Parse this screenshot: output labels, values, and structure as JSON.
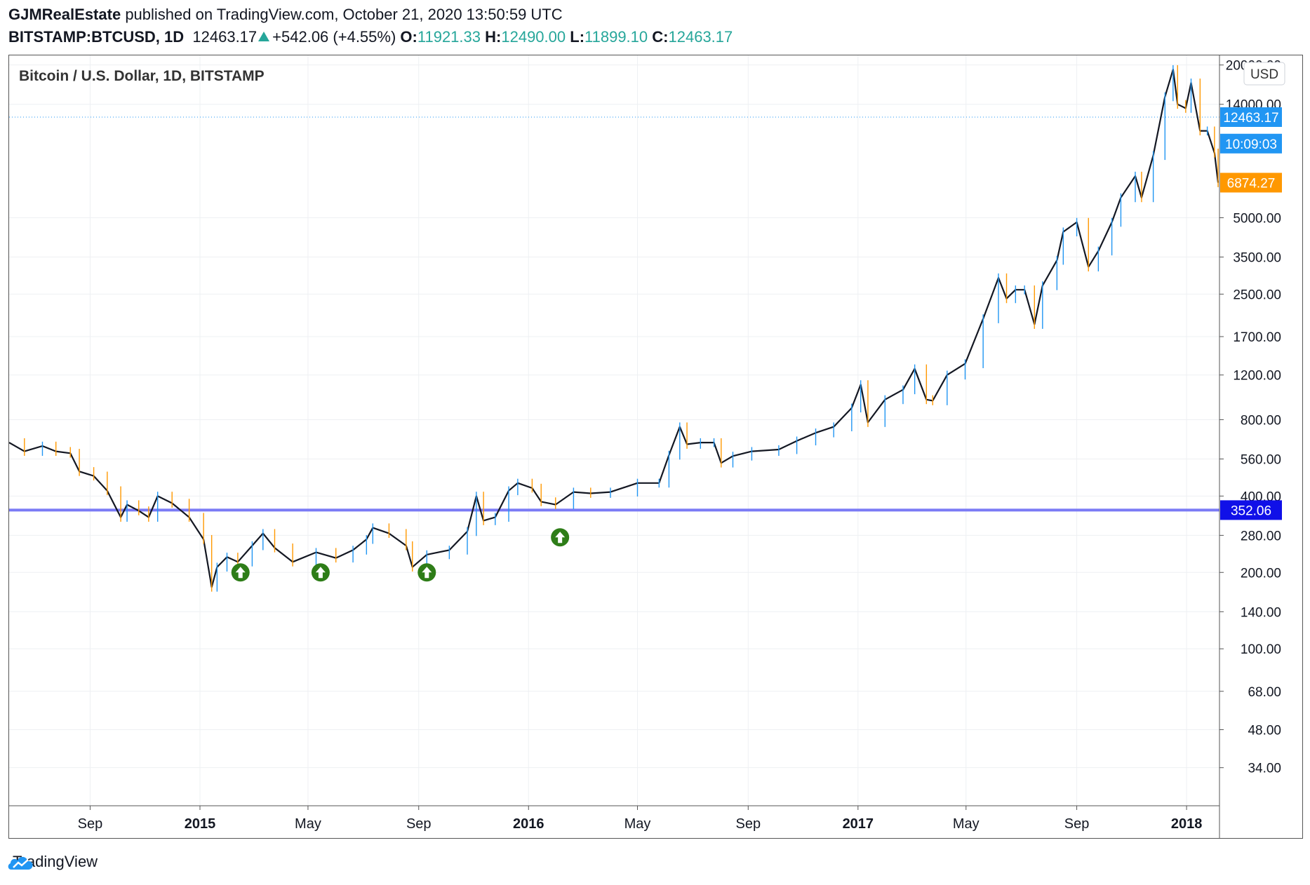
{
  "header": {
    "author": "GJMRealEstate",
    "published_text": "published on TradingView.com, October 21, 2020 13:50:59 UTC",
    "symbol": "BITSTAMP:BTCUSD, 1D",
    "last": "12463.17",
    "change": "+542.06 (+4.55%)",
    "o_label": "O:",
    "o_value": "11921.33",
    "h_label": "H:",
    "h_value": "12490.00",
    "l_label": "L:",
    "l_value": "11899.10",
    "c_label": "C:",
    "c_value": "12463.17",
    "change_color": "#26a69a"
  },
  "footer": {
    "brand": "TradingView",
    "logo_icon": "tradingview-cloud-icon"
  },
  "chart_data": {
    "type": "line",
    "title": "Bitcoin / U.S. Dollar, 1D, BITSTAMP",
    "currency_label": "USD",
    "y_scale": "log",
    "xlim": [
      "2014-06-03",
      "2018-02-05"
    ],
    "ylim": [
      25,
      21000
    ],
    "y_ticks": [
      "20000.00",
      "14000.00",
      "5000.00",
      "3500.00",
      "2500.00",
      "1700.00",
      "1200.00",
      "800.00",
      "560.00",
      "400.00",
      "280.00",
      "200.00",
      "140.00",
      "100.00",
      "68.00",
      "48.00",
      "34.00"
    ],
    "x_ticks": [
      {
        "label": "Sep",
        "date": "2014-09-01"
      },
      {
        "label": "2015",
        "date": "2015-01-01"
      },
      {
        "label": "May",
        "date": "2015-05-01"
      },
      {
        "label": "Sep",
        "date": "2015-09-01"
      },
      {
        "label": "2016",
        "date": "2016-01-01"
      },
      {
        "label": "May",
        "date": "2016-05-01"
      },
      {
        "label": "Sep",
        "date": "2016-09-01"
      },
      {
        "label": "2017",
        "date": "2017-01-01"
      },
      {
        "label": "May",
        "date": "2017-05-01"
      },
      {
        "label": "Sep",
        "date": "2017-09-01"
      },
      {
        "label": "2018",
        "date": "2018-01-01"
      }
    ],
    "series": [
      {
        "values": [
          [
            "2014-06-03",
            650
          ],
          [
            "2014-06-20",
            600
          ],
          [
            "2014-07-10",
            630
          ],
          [
            "2014-07-25",
            600
          ],
          [
            "2014-08-10",
            590
          ],
          [
            "2014-08-20",
            500
          ],
          [
            "2014-09-05",
            480
          ],
          [
            "2014-09-20",
            420
          ],
          [
            "2014-10-05",
            330
          ],
          [
            "2014-10-12",
            370
          ],
          [
            "2014-10-25",
            350
          ],
          [
            "2014-11-05",
            330
          ],
          [
            "2014-11-15",
            400
          ],
          [
            "2014-12-01",
            375
          ],
          [
            "2014-12-20",
            330
          ],
          [
            "2015-01-05",
            270
          ],
          [
            "2015-01-14",
            175
          ],
          [
            "2015-01-20",
            210
          ],
          [
            "2015-01-31",
            230
          ],
          [
            "2015-02-12",
            220
          ],
          [
            "2015-02-28",
            255
          ],
          [
            "2015-03-12",
            285
          ],
          [
            "2015-03-25",
            250
          ],
          [
            "2015-04-14",
            220
          ],
          [
            "2015-05-10",
            240
          ],
          [
            "2015-06-01",
            228
          ],
          [
            "2015-06-20",
            245
          ],
          [
            "2015-07-05",
            270
          ],
          [
            "2015-07-12",
            300
          ],
          [
            "2015-07-30",
            285
          ],
          [
            "2015-08-18",
            255
          ],
          [
            "2015-08-25",
            210
          ],
          [
            "2015-09-10",
            235
          ],
          [
            "2015-10-05",
            245
          ],
          [
            "2015-10-25",
            290
          ],
          [
            "2015-11-04",
            400
          ],
          [
            "2015-11-12",
            320
          ],
          [
            "2015-11-25",
            330
          ],
          [
            "2015-12-10",
            420
          ],
          [
            "2015-12-20",
            450
          ],
          [
            "2016-01-05",
            430
          ],
          [
            "2016-01-15",
            380
          ],
          [
            "2016-01-31",
            370
          ],
          [
            "2016-02-20",
            415
          ],
          [
            "2016-03-10",
            410
          ],
          [
            "2016-04-01",
            415
          ],
          [
            "2016-05-01",
            450
          ],
          [
            "2016-05-25",
            450
          ],
          [
            "2016-06-05",
            580
          ],
          [
            "2016-06-17",
            750
          ],
          [
            "2016-06-25",
            640
          ],
          [
            "2016-07-10",
            650
          ],
          [
            "2016-07-25",
            650
          ],
          [
            "2016-08-02",
            540
          ],
          [
            "2016-08-15",
            575
          ],
          [
            "2016-09-05",
            600
          ],
          [
            "2016-10-05",
            610
          ],
          [
            "2016-10-25",
            660
          ],
          [
            "2016-11-15",
            710
          ],
          [
            "2016-12-05",
            750
          ],
          [
            "2016-12-25",
            890
          ],
          [
            "2017-01-04",
            1100
          ],
          [
            "2017-01-12",
            780
          ],
          [
            "2017-01-31",
            960
          ],
          [
            "2017-02-20",
            1050
          ],
          [
            "2017-03-05",
            1270
          ],
          [
            "2017-03-18",
            960
          ],
          [
            "2017-03-25",
            950
          ],
          [
            "2017-04-10",
            1200
          ],
          [
            "2017-04-30",
            1330
          ],
          [
            "2017-05-20",
            2000
          ],
          [
            "2017-06-06",
            2900
          ],
          [
            "2017-06-15",
            2400
          ],
          [
            "2017-06-25",
            2600
          ],
          [
            "2017-07-05",
            2600
          ],
          [
            "2017-07-16",
            1900
          ],
          [
            "2017-07-25",
            2700
          ],
          [
            "2017-08-10",
            3400
          ],
          [
            "2017-08-17",
            4400
          ],
          [
            "2017-09-01",
            4800
          ],
          [
            "2017-09-14",
            3200
          ],
          [
            "2017-09-25",
            3700
          ],
          [
            "2017-10-10",
            4800
          ],
          [
            "2017-10-20",
            6000
          ],
          [
            "2017-11-05",
            7300
          ],
          [
            "2017-11-12",
            6000
          ],
          [
            "2017-11-25",
            8800
          ],
          [
            "2017-12-08",
            15000
          ],
          [
            "2017-12-17",
            19200
          ],
          [
            "2017-12-22",
            14000
          ],
          [
            "2017-12-31",
            13500
          ],
          [
            "2018-01-06",
            17000
          ],
          [
            "2018-01-16",
            11000
          ],
          [
            "2018-01-24",
            11000
          ],
          [
            "2018-02-01",
            9000
          ],
          [
            "2018-02-05",
            6874.27
          ]
        ]
      }
    ],
    "horizontal_line": {
      "value": 352.06,
      "label": "352.06",
      "color": "#7b7bf5"
    },
    "last_price_line": {
      "value": 12463.17
    },
    "price_tags": [
      {
        "label": "12463.17",
        "value": 12463.17,
        "color": "#2196f3"
      },
      {
        "label": "10:09:03",
        "value": 9800,
        "color": "#2196f3"
      },
      {
        "label": "6874.27",
        "value": 6874.27,
        "color": "#ff9800"
      },
      {
        "label": "352.06",
        "value": 352.06,
        "color": "#1010e8"
      }
    ],
    "markers": [
      {
        "date": "2015-02-15",
        "value": 200,
        "type": "arrow-up",
        "color": "#2e7d18"
      },
      {
        "date": "2015-05-15",
        "value": 200,
        "type": "arrow-up",
        "color": "#2e7d18"
      },
      {
        "date": "2015-09-10",
        "value": 200,
        "type": "arrow-up",
        "color": "#2e7d18"
      },
      {
        "date": "2016-02-05",
        "value": 275,
        "type": "arrow-up",
        "color": "#2e7d18"
      }
    ],
    "grid": true,
    "line_color": "#131722",
    "down_color": "#ff9800",
    "up_color": "#2196f3"
  }
}
